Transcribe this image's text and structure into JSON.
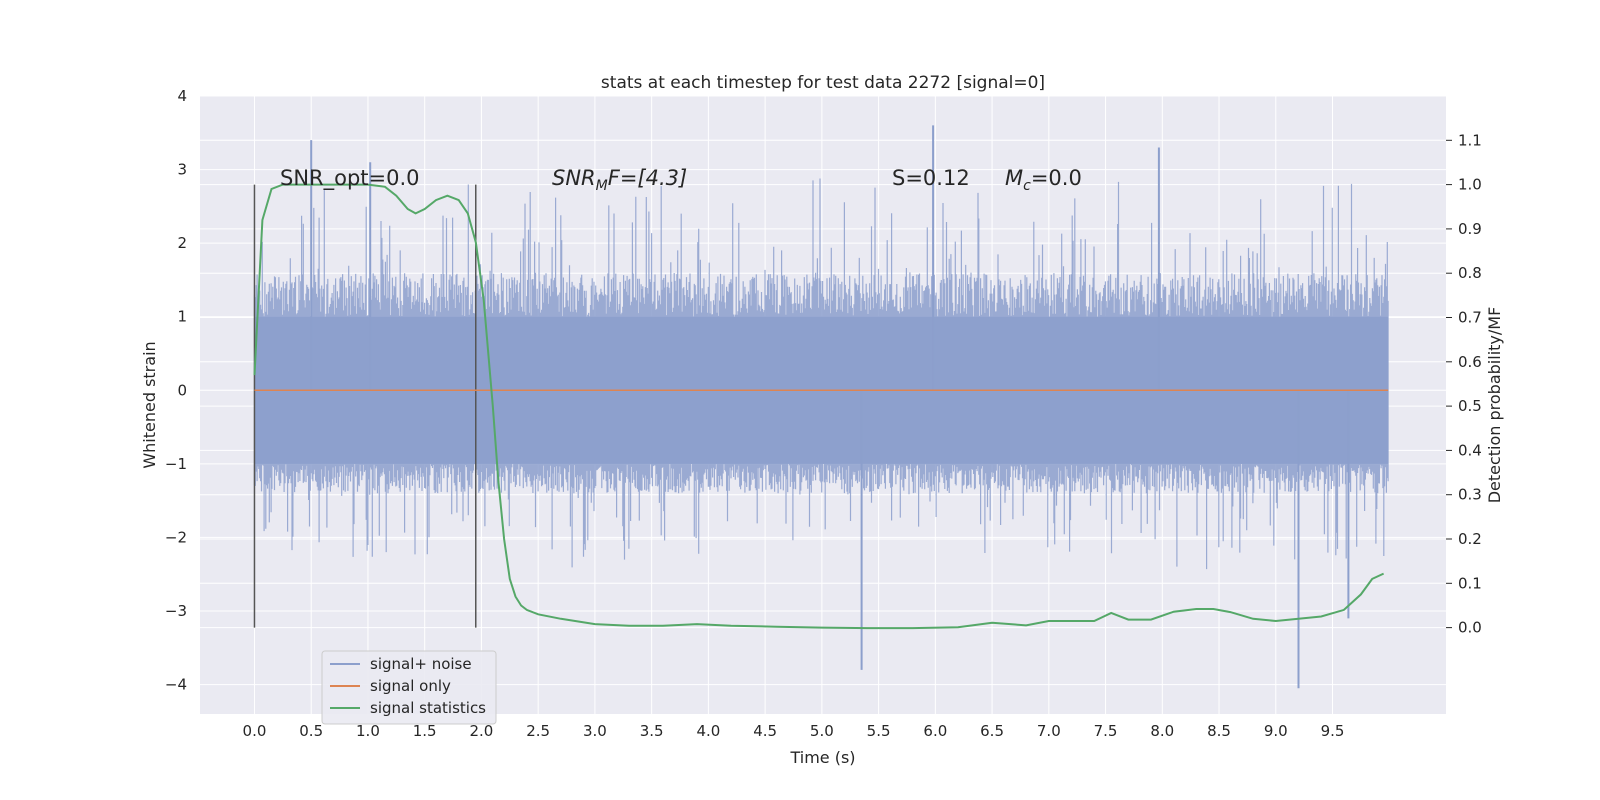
{
  "chart_data": {
    "type": "line",
    "title": "stats at each timestep for test data 2272 [signal=0]",
    "xlabel": "Time (s)",
    "ylabel": "Whitened strain",
    "y2label": "Detection probability/MF",
    "xlim": [
      -0.48,
      10.5
    ],
    "ylim": [
      -4.4,
      4.0
    ],
    "y2lim": [
      -0.195,
      1.2
    ],
    "x_ticks": [
      0.0,
      0.5,
      1.0,
      1.5,
      2.0,
      2.5,
      3.0,
      3.5,
      4.0,
      4.5,
      5.0,
      5.5,
      6.0,
      6.5,
      7.0,
      7.5,
      8.0,
      8.5,
      9.0,
      9.5
    ],
    "x_tick_labels": [
      "0.0",
      "0.5",
      "1.0",
      "1.5",
      "2.0",
      "2.5",
      "3.0",
      "3.5",
      "4.0",
      "4.5",
      "5.0",
      "5.5",
      "6.0",
      "6.5",
      "7.0",
      "7.5",
      "8.0",
      "8.5",
      "9.0",
      "9.5"
    ],
    "y_ticks": [
      4,
      3,
      2,
      1,
      0,
      -1,
      -2,
      -3,
      -4
    ],
    "y_tick_labels": [
      "4",
      "3",
      "2",
      "1",
      "0",
      "−1",
      "−2",
      "−3",
      "−4"
    ],
    "y2_ticks": [
      1.1,
      1.0,
      0.9,
      0.8,
      0.7,
      0.6,
      0.5,
      0.4,
      0.3,
      0.2,
      0.1,
      0.0
    ],
    "y2_tick_labels": [
      "1.1",
      "1.0",
      "0.9",
      "0.8",
      "0.7",
      "0.6",
      "0.5",
      "0.4",
      "0.3",
      "0.2",
      "0.1",
      "0.0"
    ],
    "grid": true,
    "legend_position": "lower-left",
    "annotations": {
      "snr_opt": "SNR_opt=0.0",
      "snr_mf_main": "SNR",
      "snr_mf_sub": "M",
      "snr_mf_rest": "F=[4.3]",
      "s_label": "S=0.12",
      "mc_main": "M",
      "mc_sub": "c",
      "mc_rest": "=0.0"
    },
    "vertical_markers": [
      0.0,
      1.95
    ],
    "series": [
      {
        "name": "signal+ noise",
        "color": "#8c9fcc",
        "x_range": [
          0.0,
          9.99
        ],
        "typical_range": [
          -1.4,
          1.6
        ],
        "extremes": [
          {
            "x": 0.5,
            "y": 3.4
          },
          {
            "x": 1.02,
            "y": 3.1
          },
          {
            "x": 5.35,
            "y": -3.8
          },
          {
            "x": 5.98,
            "y": 3.6
          },
          {
            "x": 7.97,
            "y": 3.3
          },
          {
            "x": 9.2,
            "y": -4.05
          },
          {
            "x": 9.64,
            "y": -3.1
          }
        ]
      },
      {
        "name": "signal only",
        "color": "#dd8452",
        "x": [
          0.0,
          9.99
        ],
        "y": [
          0.0,
          0.0
        ]
      },
      {
        "name": "signal statistics",
        "color": "#55a868",
        "axis": "right",
        "x": [
          0.0,
          0.07,
          0.15,
          0.25,
          0.4,
          0.6,
          0.8,
          1.0,
          1.15,
          1.25,
          1.35,
          1.42,
          1.5,
          1.6,
          1.7,
          1.8,
          1.88,
          1.95,
          2.02,
          2.1,
          2.15,
          2.2,
          2.25,
          2.3,
          2.35,
          2.4,
          2.5,
          2.7,
          3.0,
          3.3,
          3.6,
          3.9,
          4.2,
          4.6,
          5.0,
          5.4,
          5.8,
          6.2,
          6.5,
          6.8,
          7.0,
          7.2,
          7.4,
          7.55,
          7.7,
          7.9,
          8.1,
          8.3,
          8.45,
          8.6,
          8.8,
          9.0,
          9.2,
          9.4,
          9.6,
          9.75,
          9.85,
          9.95
        ],
        "y": [
          0.57,
          0.92,
          0.99,
          1.0,
          1.0,
          1.0,
          1.0,
          1.0,
          0.995,
          0.975,
          0.945,
          0.935,
          0.945,
          0.965,
          0.975,
          0.965,
          0.935,
          0.87,
          0.74,
          0.5,
          0.33,
          0.2,
          0.11,
          0.07,
          0.05,
          0.04,
          0.03,
          0.02,
          0.008,
          0.004,
          0.004,
          0.008,
          0.004,
          0.002,
          0.0,
          -0.001,
          -0.001,
          0.001,
          0.011,
          0.005,
          0.015,
          0.015,
          0.015,
          0.033,
          0.018,
          0.018,
          0.036,
          0.042,
          0.042,
          0.035,
          0.02,
          0.015,
          0.02,
          0.025,
          0.04,
          0.075,
          0.11,
          0.122
        ]
      }
    ]
  }
}
